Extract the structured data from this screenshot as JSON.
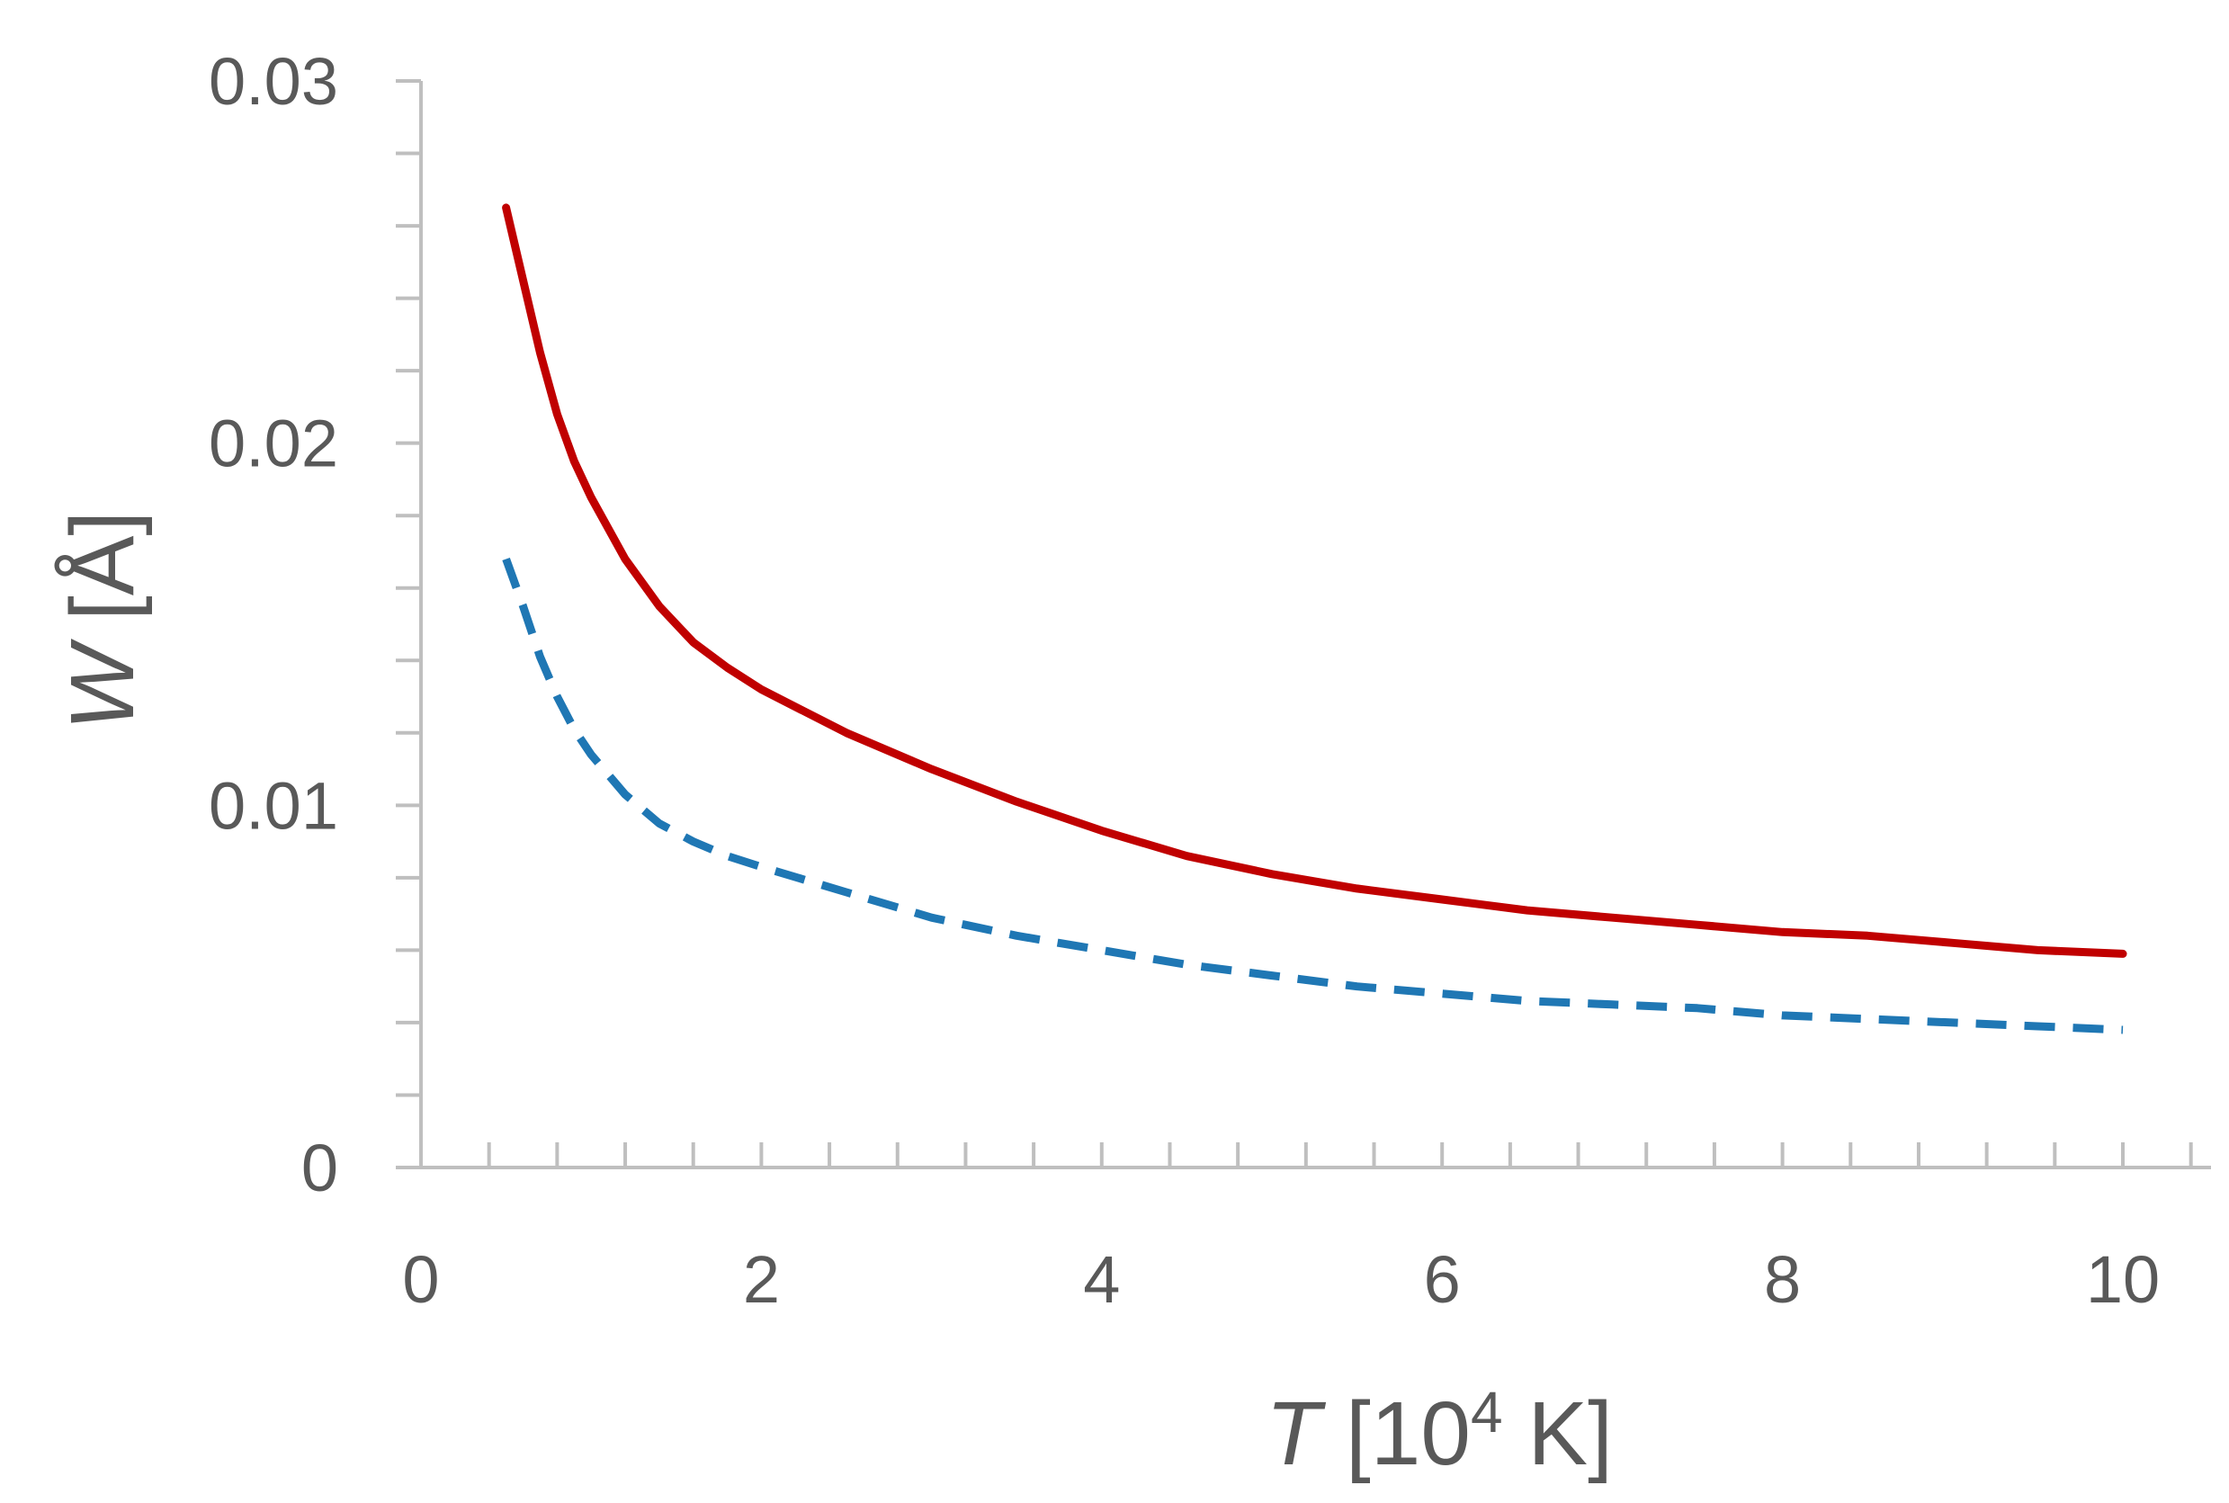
{
  "chart_data": {
    "type": "line",
    "title": "",
    "xlabel": {
      "var": "T",
      "prefix": " [10",
      "sup": "4",
      "suffix": " K]"
    },
    "ylabel": {
      "var": "W",
      "suffix": " [Å]"
    },
    "xlim": [
      0,
      10.5
    ],
    "ylim": [
      0,
      0.03
    ],
    "x_ticks": [
      0,
      2,
      4,
      6,
      8,
      10
    ],
    "x_tick_labels": [
      "0",
      "2",
      "4",
      "6",
      "8",
      "10"
    ],
    "x_minor_step": 0.4,
    "y_ticks": [
      0,
      0.01,
      0.02,
      0.03
    ],
    "y_tick_labels": [
      "0",
      "0.01",
      "0.02",
      "0.03"
    ],
    "y_minor_step": 0.002,
    "grid": false,
    "legend": "none",
    "series": [
      {
        "style": "solid",
        "color": "#c00000",
        "x": [
          0.5,
          0.6,
          0.7,
          0.8,
          0.9,
          1.0,
          1.2,
          1.4,
          1.6,
          1.8,
          2.0,
          2.5,
          3.0,
          3.5,
          4.0,
          4.5,
          5.0,
          5.5,
          6.0,
          6.5,
          7.0,
          7.5,
          8.0,
          8.5,
          9.0,
          9.5,
          10.0
        ],
        "values": [
          0.0265,
          0.0245,
          0.0225,
          0.0208,
          0.0195,
          0.0185,
          0.0168,
          0.0155,
          0.0145,
          0.0138,
          0.0132,
          0.012,
          0.011,
          0.0101,
          0.0093,
          0.0086,
          0.0081,
          0.0077,
          0.0074,
          0.0071,
          0.0069,
          0.0067,
          0.0065,
          0.0064,
          0.0062,
          0.006,
          0.0059
        ]
      },
      {
        "style": "dashed",
        "color": "#1f77b4",
        "x": [
          0.5,
          0.6,
          0.7,
          0.8,
          0.9,
          1.0,
          1.2,
          1.4,
          1.6,
          1.8,
          2.0,
          2.5,
          3.0,
          3.5,
          4.0,
          4.5,
          5.0,
          5.5,
          6.0,
          6.5,
          7.0,
          7.5,
          8.0,
          8.5,
          9.0,
          9.5,
          10.0
        ],
        "values": [
          0.0168,
          0.0155,
          0.0141,
          0.013,
          0.0121,
          0.0114,
          0.0103,
          0.0095,
          0.009,
          0.0086,
          0.0083,
          0.0076,
          0.0069,
          0.0064,
          0.006,
          0.0056,
          0.0053,
          0.005,
          0.0048,
          0.0046,
          0.0045,
          0.0044,
          0.0042,
          0.0041,
          0.004,
          0.0039,
          0.0038
        ]
      }
    ]
  }
}
